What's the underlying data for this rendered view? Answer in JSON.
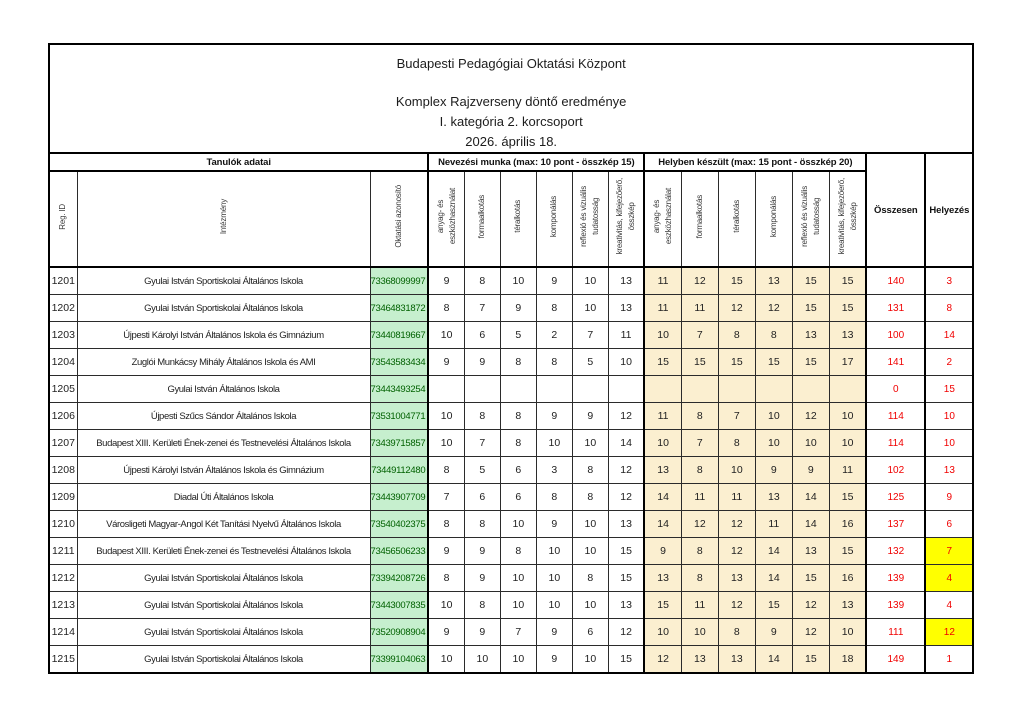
{
  "title": {
    "org": "Budapesti Pedagógiai Oktatási Központ",
    "line1": "Komplex Rajzverseny döntő eredménye",
    "line2": "I. kategória 2. korcsoport",
    "line3": "2026. április 18."
  },
  "table": {
    "groups": {
      "students": "Tanulók adatai",
      "entry": "Nevezési munka (max: 10 pont - összkép 15)",
      "onsite": "Helyben készült (max: 15 pont - összkép 20)"
    },
    "columns": {
      "reg_id": "Reg. ID",
      "institution": "Intézmény",
      "student_id": "Oktatási azonosító",
      "criteria": [
        "anyag- és\neszközhasználat",
        "formaalkotás",
        "téralkotás",
        "komponálás",
        "reflexió és vizuális\ntudatosság",
        "kreativitás, kifejezőerő,\nösszkép"
      ],
      "total": "Összesen",
      "rank": "Helyezés"
    },
    "rows": [
      {
        "reg": "1201",
        "school": "Gyulai István Sportiskolai Általános Iskola",
        "student_id": "73368099997",
        "entry_scores": [
          9,
          8,
          10,
          9,
          10,
          13
        ],
        "onsite_scores": [
          11,
          12,
          15,
          13,
          15,
          15
        ],
        "total": 140,
        "rank": 3,
        "rank_highlight": false
      },
      {
        "reg": "1202",
        "school": "Gyulai István Sportiskolai Általános Iskola",
        "student_id": "73464831872",
        "entry_scores": [
          8,
          7,
          9,
          8,
          10,
          13
        ],
        "onsite_scores": [
          11,
          11,
          12,
          12,
          15,
          15
        ],
        "total": 131,
        "rank": 8,
        "rank_highlight": false
      },
      {
        "reg": "1203",
        "school": "Újpesti Károlyi István Általános Iskola és Gimnázium",
        "student_id": "73440819667",
        "entry_scores": [
          10,
          6,
          5,
          2,
          7,
          11
        ],
        "onsite_scores": [
          10,
          7,
          8,
          8,
          13,
          13
        ],
        "total": 100,
        "rank": 14,
        "rank_highlight": false
      },
      {
        "reg": "1204",
        "school": "Zuglói Munkácsy Mihály Általános Iskola és AMI",
        "student_id": "73543583434",
        "entry_scores": [
          9,
          9,
          8,
          8,
          5,
          10
        ],
        "onsite_scores": [
          15,
          15,
          15,
          15,
          15,
          17
        ],
        "total": 141,
        "rank": 2,
        "rank_highlight": false
      },
      {
        "reg": "1205",
        "school": "Gyulai István Általános Iskola",
        "student_id": "73443493254",
        "entry_scores": [
          "",
          "",
          "",
          "",
          "",
          ""
        ],
        "onsite_scores": [
          "",
          "",
          "",
          "",
          "",
          ""
        ],
        "total": 0,
        "rank": 15,
        "rank_highlight": false
      },
      {
        "reg": "1206",
        "school": "Újpesti Szűcs Sándor Általános Iskola",
        "student_id": "73531004771",
        "entry_scores": [
          10,
          8,
          8,
          9,
          9,
          12
        ],
        "onsite_scores": [
          11,
          8,
          7,
          10,
          12,
          10
        ],
        "total": 114,
        "rank": 10,
        "rank_highlight": false
      },
      {
        "reg": "1207",
        "school": "Budapest XIII. Kerületi Ének-zenei és Testnevelési Általános Iskola",
        "student_id": "73439715857",
        "entry_scores": [
          10,
          7,
          8,
          10,
          10,
          14
        ],
        "onsite_scores": [
          10,
          7,
          8,
          10,
          10,
          10
        ],
        "total": 114,
        "rank": 10,
        "rank_highlight": false
      },
      {
        "reg": "1208",
        "school": "Újpesti Károlyi István Általános Iskola és Gimnázium",
        "student_id": "73449112480",
        "entry_scores": [
          8,
          5,
          6,
          3,
          8,
          12
        ],
        "onsite_scores": [
          13,
          8,
          10,
          9,
          9,
          11
        ],
        "total": 102,
        "rank": 13,
        "rank_highlight": false
      },
      {
        "reg": "1209",
        "school": "Diadal Úti Általános Iskola",
        "student_id": "73443907709",
        "entry_scores": [
          7,
          6,
          6,
          8,
          8,
          12
        ],
        "onsite_scores": [
          14,
          11,
          11,
          13,
          14,
          15
        ],
        "total": 125,
        "rank": 9,
        "rank_highlight": false
      },
      {
        "reg": "1210",
        "school": "Városligeti Magyar-Angol Két Tanítási Nyelvű Általános Iskola",
        "student_id": "73540402375",
        "entry_scores": [
          8,
          8,
          10,
          9,
          10,
          13
        ],
        "onsite_scores": [
          14,
          12,
          12,
          11,
          14,
          16
        ],
        "total": 137,
        "rank": 6,
        "rank_highlight": false
      },
      {
        "reg": "1211",
        "school": "Budapest XIII. Kerületi Ének-zenei és Testnevelési Általános Iskola",
        "student_id": "73456506233",
        "entry_scores": [
          9,
          9,
          8,
          10,
          10,
          15
        ],
        "onsite_scores": [
          9,
          8,
          12,
          14,
          13,
          15
        ],
        "total": 132,
        "rank": 7,
        "rank_highlight": true
      },
      {
        "reg": "1212",
        "school": "Gyulai István Sportiskolai Általános Iskola",
        "student_id": "73394208726",
        "entry_scores": [
          8,
          9,
          10,
          10,
          8,
          15
        ],
        "onsite_scores": [
          13,
          8,
          13,
          14,
          15,
          16
        ],
        "total": 139,
        "rank": 4,
        "rank_highlight": true
      },
      {
        "reg": "1213",
        "school": "Gyulai István Sportiskolai Általános Iskola",
        "student_id": "73443007835",
        "entry_scores": [
          10,
          8,
          10,
          10,
          10,
          13
        ],
        "onsite_scores": [
          15,
          11,
          12,
          15,
          12,
          13
        ],
        "total": 139,
        "rank": 4,
        "rank_highlight": false
      },
      {
        "reg": "1214",
        "school": "Gyulai István Sportiskolai Általános Iskola",
        "student_id": "73520908904",
        "entry_scores": [
          9,
          9,
          7,
          9,
          6,
          12
        ],
        "onsite_scores": [
          10,
          10,
          8,
          9,
          12,
          10
        ],
        "total": 111,
        "rank": 12,
        "rank_highlight": true
      },
      {
        "reg": "1215",
        "school": "Gyulai István Sportiskolai Általános Iskola",
        "student_id": "73399104063",
        "entry_scores": [
          10,
          10,
          10,
          9,
          10,
          15
        ],
        "onsite_scores": [
          12,
          13,
          13,
          14,
          15,
          18
        ],
        "total": 149,
        "rank": 1,
        "rank_highlight": false
      }
    ]
  },
  "colors": {
    "student_id_bg": "#C6EFCE",
    "student_id_text": "#006100",
    "onsite_bg": "#FBEFD0",
    "rank_highlight_bg": "#FFFF00",
    "summary_text": "#F00000",
    "border": "#000000"
  }
}
